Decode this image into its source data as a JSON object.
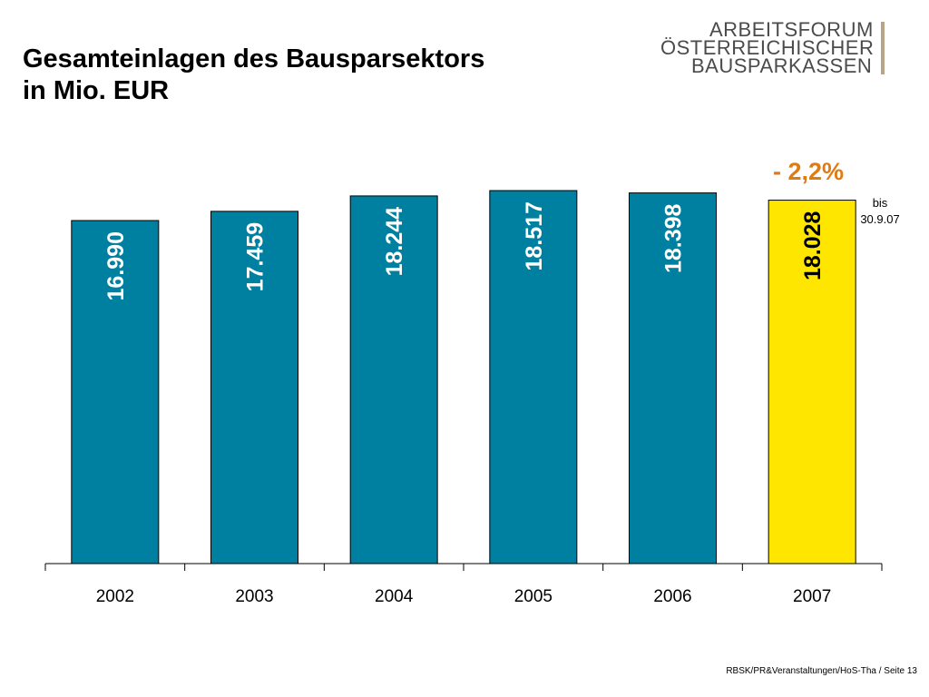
{
  "title_line1": "Gesamteinlagen des Bausparsektors",
  "title_line2": "in Mio. EUR",
  "logo": {
    "line1": "ARBEITSFORUM",
    "line2": "ÖSTERREICHISCHER",
    "line3": "BAUSPARKASSEN"
  },
  "footer": "RBSK/PR&Veranstaltungen/HoS-Tha / Seite 13",
  "colors": {
    "bar": "#0080a0",
    "highlight_bar": "#ffe600",
    "change_text": "#e07b12"
  },
  "chart_data": {
    "type": "bar",
    "categories": [
      "2002",
      "2003",
      "2004",
      "2005",
      "2006",
      "2007"
    ],
    "values": [
      16990,
      17459,
      18244,
      18517,
      18398,
      18028
    ],
    "value_labels": [
      "16.990",
      "17.459",
      "18.244",
      "18.517",
      "18.398",
      "18.028"
    ],
    "highlight_index": 5,
    "annotation_change": "- 2,2%",
    "annotation_note_line1": "bis",
    "annotation_note_line2": "30.9.07",
    "xlabel": "",
    "ylabel": "",
    "grid": false
  }
}
